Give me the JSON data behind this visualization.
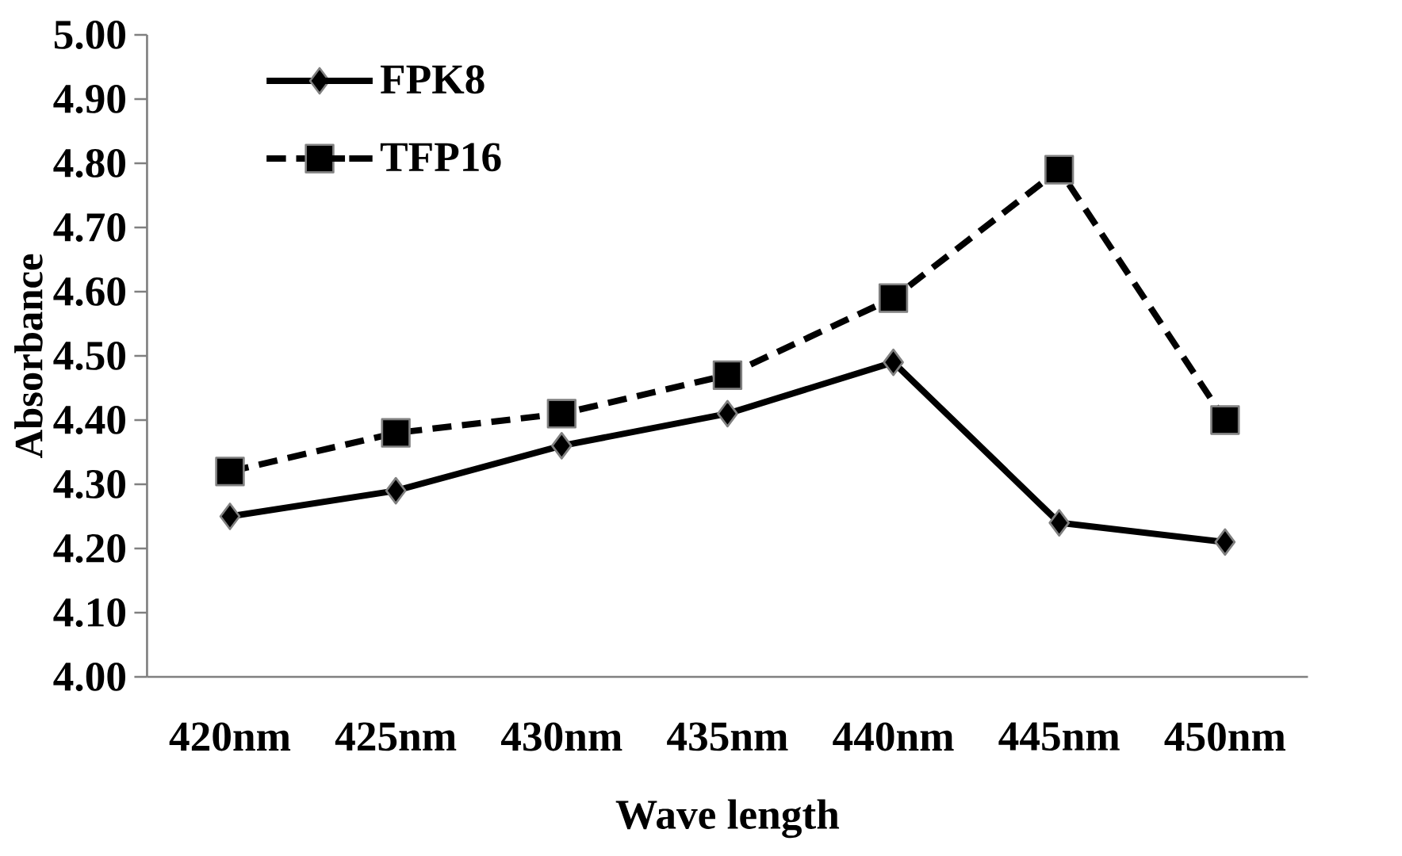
{
  "chart_data": {
    "type": "line",
    "xlabel": "Wave length",
    "ylabel": "Absorbance",
    "categories": [
      "420nm",
      "425nm",
      "430nm",
      "435nm",
      "440nm",
      "445nm",
      "450nm"
    ],
    "series": [
      {
        "name": "FPK8",
        "color": "#000000",
        "marker": "diamond",
        "line_style": "solid",
        "values": [
          4.25,
          4.29,
          4.36,
          4.41,
          4.49,
          4.24,
          4.21
        ]
      },
      {
        "name": "TFP16",
        "color": "#000000",
        "marker": "square",
        "line_style": "dashed",
        "values": [
          4.32,
          4.38,
          4.41,
          4.47,
          4.59,
          4.79,
          4.4
        ]
      }
    ],
    "ylim": [
      4.0,
      5.0
    ],
    "yticks": [
      {
        "value": 4.0,
        "label": "4.00"
      },
      {
        "value": 4.1,
        "label": "4.10"
      },
      {
        "value": 4.2,
        "label": "4.20"
      },
      {
        "value": 4.3,
        "label": "4.30"
      },
      {
        "value": 4.4,
        "label": "4.40"
      },
      {
        "value": 4.5,
        "label": "4.50"
      },
      {
        "value": 4.6,
        "label": "4.60"
      },
      {
        "value": 4.7,
        "label": "4.70"
      },
      {
        "value": 4.8,
        "label": "4.80"
      },
      {
        "value": 4.9,
        "label": "4.90"
      },
      {
        "value": 5.0,
        "label": "5.00"
      }
    ],
    "grid": false,
    "legend": "top left"
  }
}
